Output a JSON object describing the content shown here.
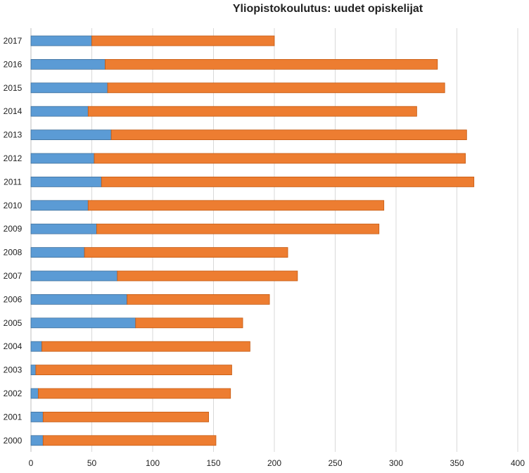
{
  "chart_data": {
    "type": "bar",
    "orientation": "horizontal",
    "stacked": true,
    "title": "Yliopistokoulutus: uudet opiskelijat",
    "xlabel": "",
    "ylabel": "",
    "xlim": [
      0,
      400
    ],
    "x_ticks": [
      0,
      50,
      100,
      150,
      200,
      250,
      300,
      350,
      400
    ],
    "grid": true,
    "legend": "none",
    "categories": [
      "2017",
      "2016",
      "2015",
      "2014",
      "2013",
      "2012",
      "2011",
      "2010",
      "2009",
      "2008",
      "2007",
      "2006",
      "2005",
      "2004",
      "2003",
      "2002",
      "2001",
      "2000"
    ],
    "series": [
      {
        "color": "#5b9bd5",
        "values": [
          50,
          61,
          63,
          47,
          66,
          52,
          58,
          47,
          54,
          44,
          71,
          79,
          86,
          9,
          4,
          6,
          10,
          10
        ]
      },
      {
        "color": "#ed7d31",
        "values": [
          150,
          273,
          277,
          270,
          292,
          305,
          306,
          243,
          232,
          167,
          148,
          117,
          88,
          171,
          161,
          158,
          136,
          142
        ]
      }
    ]
  }
}
